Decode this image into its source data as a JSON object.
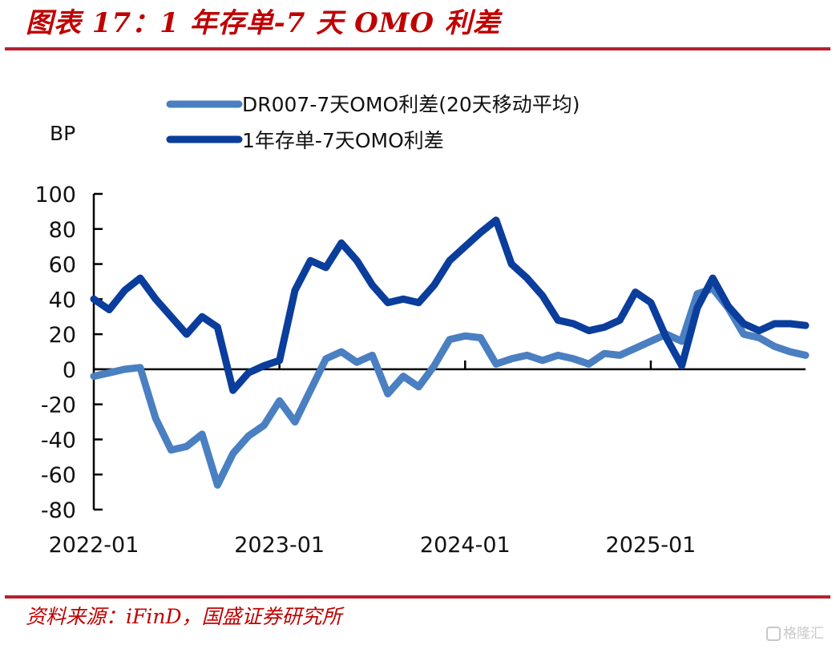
{
  "header": {
    "title": "图表 17：1 年存单-7 天 OMO 利差"
  },
  "footer": {
    "source": "资料来源：iFinD，国盛证券研究所",
    "watermark": "格隆汇"
  },
  "colors": {
    "accent": "#b8202c",
    "series_light": "#4a7fc1",
    "series_dark": "#0a3d9c",
    "axis": "#000000"
  },
  "chart_data": {
    "type": "line",
    "title": "1 年存单-7 天 OMO 利差",
    "ylabel": "BP",
    "xlabel": "",
    "ylim": [
      -80,
      100
    ],
    "yticks": [
      100,
      80,
      60,
      40,
      20,
      0,
      -20,
      -40,
      -60,
      -80
    ],
    "xlim": [
      "2022-01",
      "2025-11"
    ],
    "xticks": [
      "2022-01",
      "2023-01",
      "2024-01",
      "2025-01"
    ],
    "grid": false,
    "legend_position": "top",
    "x": [
      "2022-01",
      "2022-02",
      "2022-03",
      "2022-04",
      "2022-05",
      "2022-06",
      "2022-07",
      "2022-08",
      "2022-09",
      "2022-10",
      "2022-11",
      "2022-12",
      "2023-01",
      "2023-02",
      "2023-03",
      "2023-04",
      "2023-05",
      "2023-06",
      "2023-07",
      "2023-08",
      "2023-09",
      "2023-10",
      "2023-11",
      "2023-12",
      "2024-01",
      "2024-02",
      "2024-03",
      "2024-04",
      "2024-05",
      "2024-06",
      "2024-07",
      "2024-08",
      "2024-09",
      "2024-10",
      "2024-11",
      "2024-12",
      "2025-01",
      "2025-02",
      "2025-03",
      "2025-04",
      "2025-05",
      "2025-06",
      "2025-07",
      "2025-08",
      "2025-09",
      "2025-10",
      "2025-11"
    ],
    "series": [
      {
        "name": "DR007-7天OMO利差(20天移动平均)",
        "values": [
          -4,
          -2,
          0,
          1,
          -28,
          -46,
          -44,
          -37,
          -66,
          -48,
          -38,
          -32,
          -18,
          -30,
          -12,
          6,
          10,
          4,
          8,
          -14,
          -4,
          -10,
          2,
          17,
          19,
          18,
          3,
          6,
          8,
          5,
          8,
          6,
          3,
          9,
          8,
          12,
          16,
          20,
          16,
          43,
          46,
          35,
          20,
          18,
          13,
          10,
          8
        ]
      },
      {
        "name": "1年存单-7天OMO利差",
        "values": [
          40,
          34,
          45,
          52,
          40,
          30,
          20,
          30,
          24,
          -12,
          -2,
          2,
          5,
          45,
          62,
          58,
          72,
          62,
          48,
          38,
          40,
          38,
          48,
          62,
          70,
          78,
          85,
          60,
          52,
          42,
          28,
          26,
          22,
          24,
          28,
          44,
          38,
          18,
          2,
          35,
          52,
          36,
          26,
          22,
          26,
          26,
          25
        ]
      }
    ]
  }
}
